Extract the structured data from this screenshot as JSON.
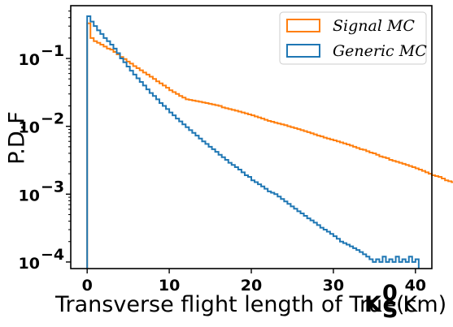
{
  "chart_data": {
    "type": "line",
    "drawstyle": "step-histogram",
    "xlabel": "Transverse flight length of True K",
    "xlabel_symbol": {
      "base": "K",
      "sup": "0",
      "sub": "S",
      "unit": "(cm)"
    },
    "ylabel": "P.D.F",
    "xlim": [
      -2,
      42
    ],
    "ylim": [
      8e-05,
      0.6
    ],
    "yscale": "log",
    "grid": false,
    "legend_position": "top-right",
    "x_ticks": [
      0,
      10,
      20,
      30,
      40
    ],
    "x_tick_labels": [
      "0",
      "10",
      "20",
      "30",
      "40"
    ],
    "y_ticks": [
      0.0001,
      0.001,
      0.01,
      0.1
    ],
    "y_tick_labels": [
      "10",
      "10",
      "10",
      "10"
    ],
    "y_tick_exponents": [
      "−4",
      "−3",
      "−2",
      "−1"
    ],
    "bin_start": 0,
    "bin_width": 0.4,
    "series": [
      {
        "name": "Signal MC",
        "color": "#ff7f0e",
        "values": [
          0.33,
          0.2,
          0.18,
          0.17,
          0.16,
          0.15,
          0.14,
          0.135,
          0.125,
          0.115,
          0.105,
          0.098,
          0.09,
          0.084,
          0.077,
          0.072,
          0.067,
          0.062,
          0.058,
          0.054,
          0.05,
          0.046,
          0.043,
          0.04,
          0.037,
          0.034,
          0.032,
          0.03,
          0.028,
          0.0265,
          0.025,
          0.0245,
          0.024,
          0.0235,
          0.023,
          0.0225,
          0.022,
          0.0215,
          0.021,
          0.0205,
          0.02,
          0.019,
          0.0185,
          0.018,
          0.0175,
          0.017,
          0.0165,
          0.016,
          0.0155,
          0.015,
          0.0145,
          0.014,
          0.0135,
          0.013,
          0.0125,
          0.012,
          0.0117,
          0.0113,
          0.011,
          0.0107,
          0.0104,
          0.01,
          0.0097,
          0.0094,
          0.0091,
          0.0088,
          0.0085,
          0.0082,
          0.0079,
          0.0076,
          0.0073,
          0.0071,
          0.0068,
          0.0066,
          0.0064,
          0.0062,
          0.006,
          0.0058,
          0.0056,
          0.0054,
          0.0052,
          0.005,
          0.0048,
          0.0046,
          0.0045,
          0.0043,
          0.0041,
          0.004,
          0.0038,
          0.0036,
          0.0035,
          0.0034,
          0.0032,
          0.0031,
          0.003,
          0.0029,
          0.0028,
          0.0027,
          0.0026,
          0.0025,
          0.0024,
          0.0023,
          0.0022,
          0.0021,
          0.002,
          0.0019,
          0.00185,
          0.0018,
          0.0017,
          0.0016,
          0.00155,
          0.0015,
          0.00145,
          0.0014,
          0.00135,
          0.0013,
          0.00125,
          0.0012,
          0.00115,
          0.0011,
          0.00105,
          0.001,
          0.00095,
          0.0009,
          0.00085,
          0.0008,
          0.00078,
          0.00075,
          0.00072,
          0.0007,
          0.00068,
          0.00065,
          0.00063,
          0.0006,
          0.00058,
          0.00056,
          0.00054,
          0.00052,
          0.0005,
          0.00048,
          0.00046,
          0.00058,
          0.00057,
          0.00056,
          0.00055,
          0.00054,
          0.00056,
          0.00055,
          0.00054,
          0.00057,
          0.00055,
          0.00054
        ]
      },
      {
        "name": "Generic MC",
        "color": "#1f77b4",
        "values": [
          0.42,
          0.35,
          0.3,
          0.26,
          0.23,
          0.2,
          0.18,
          0.16,
          0.14,
          0.12,
          0.1,
          0.088,
          0.076,
          0.066,
          0.058,
          0.051,
          0.045,
          0.04,
          0.035,
          0.031,
          0.028,
          0.025,
          0.022,
          0.02,
          0.018,
          0.016,
          0.0145,
          0.013,
          0.0118,
          0.0107,
          0.0097,
          0.0088,
          0.008,
          0.0073,
          0.0066,
          0.006,
          0.0055,
          0.005,
          0.0046,
          0.0042,
          0.0038,
          0.0035,
          0.0032,
          0.0029,
          0.0027,
          0.0025,
          0.0023,
          0.0021,
          0.0019,
          0.0018,
          0.0016,
          0.0015,
          0.0014,
          0.0013,
          0.0012,
          0.0011,
          0.00105,
          0.001,
          0.00092,
          0.00085,
          0.00078,
          0.00072,
          0.00066,
          0.00061,
          0.00056,
          0.00052,
          0.00048,
          0.00044,
          0.00041,
          0.00038,
          0.00035,
          0.00032,
          0.0003,
          0.00028,
          0.00026,
          0.00024,
          0.00022,
          0.0002,
          0.00019,
          0.00018,
          0.00017,
          0.00016,
          0.00015,
          0.00014,
          0.00013,
          0.00012,
          0.00011,
          0.0001,
          0.00011,
          0.0001,
          0.00012,
          0.0001,
          0.00011,
          0.0001,
          0.00012,
          0.0001,
          0.00011,
          0.0001,
          0.00012,
          0.0001,
          0.00011
        ]
      }
    ]
  }
}
